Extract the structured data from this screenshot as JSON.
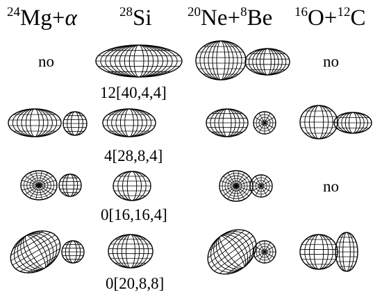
{
  "headers": [
    {
      "sup1": "24",
      "base1": "Mg+",
      "sup2": "",
      "base2": "",
      "greek": "α"
    },
    {
      "sup1": "28",
      "base1": "Si",
      "sup2": "",
      "base2": "",
      "greek": ""
    },
    {
      "sup1": "20",
      "base1": "Ne+",
      "sup2": "8",
      "base2": "Be",
      "greek": ""
    },
    {
      "sup1": "16",
      "base1": "O+",
      "sup2": "12",
      "base2": "C",
      "greek": ""
    }
  ],
  "labels": {
    "row1_col1": "no",
    "row1_col4": "no",
    "row3_col4": "no",
    "config1": "12[40,4,4]",
    "config2": "4[28,8,4]",
    "config3": "0[16,16,4]",
    "config4": "0[20,8,8]"
  }
}
